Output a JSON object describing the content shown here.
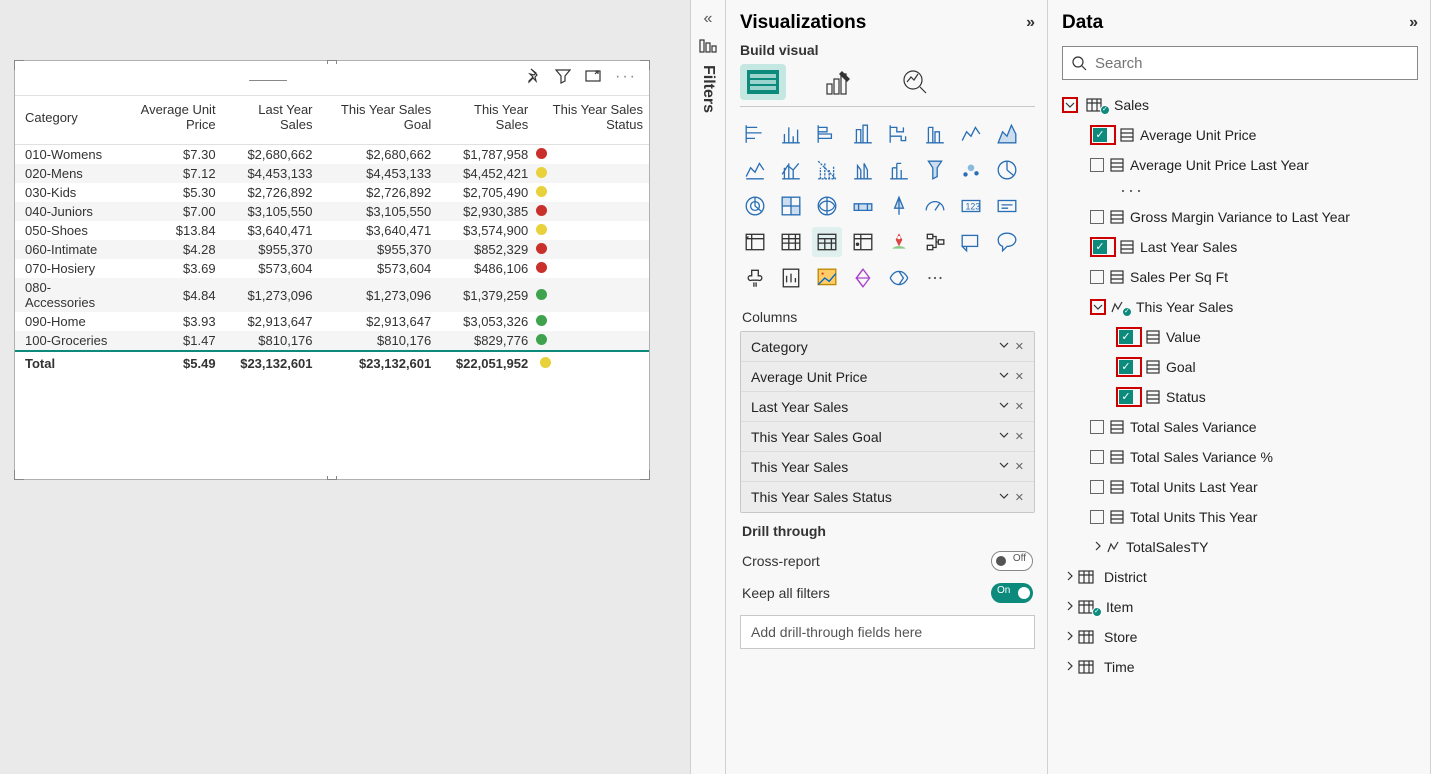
{
  "colors": {
    "red": "#c9302c",
    "yellow": "#e8d13a",
    "green": "#3fa34d",
    "teal": "#0c8b7d",
    "highlight_red": "#c00"
  },
  "table": {
    "columns": [
      "Category",
      "Average Unit Price",
      "Last Year Sales",
      "This Year Sales Goal",
      "This Year Sales",
      "This Year Sales Status"
    ],
    "rows": [
      {
        "c0": "010-Womens",
        "c1": "$7.30",
        "c2": "$2,680,662",
        "c3": "$2,680,662",
        "c4": "$1,787,958",
        "status": "red"
      },
      {
        "c0": "020-Mens",
        "c1": "$7.12",
        "c2": "$4,453,133",
        "c3": "$4,453,133",
        "c4": "$4,452,421",
        "status": "yellow"
      },
      {
        "c0": "030-Kids",
        "c1": "$5.30",
        "c2": "$2,726,892",
        "c3": "$2,726,892",
        "c4": "$2,705,490",
        "status": "yellow"
      },
      {
        "c0": "040-Juniors",
        "c1": "$7.00",
        "c2": "$3,105,550",
        "c3": "$3,105,550",
        "c4": "$2,930,385",
        "status": "red"
      },
      {
        "c0": "050-Shoes",
        "c1": "$13.84",
        "c2": "$3,640,471",
        "c3": "$3,640,471",
        "c4": "$3,574,900",
        "status": "yellow"
      },
      {
        "c0": "060-Intimate",
        "c1": "$4.28",
        "c2": "$955,370",
        "c3": "$955,370",
        "c4": "$852,329",
        "status": "red"
      },
      {
        "c0": "070-Hosiery",
        "c1": "$3.69",
        "c2": "$573,604",
        "c3": "$573,604",
        "c4": "$486,106",
        "status": "red"
      },
      {
        "c0": "080-Accessories",
        "c1": "$4.84",
        "c2": "$1,273,096",
        "c3": "$1,273,096",
        "c4": "$1,379,259",
        "status": "green"
      },
      {
        "c0": "090-Home",
        "c1": "$3.93",
        "c2": "$2,913,647",
        "c3": "$2,913,647",
        "c4": "$3,053,326",
        "status": "green"
      },
      {
        "c0": "100-Groceries",
        "c1": "$1.47",
        "c2": "$810,176",
        "c3": "$810,176",
        "c4": "$829,776",
        "status": "green"
      }
    ],
    "total": {
      "label": "Total",
      "c1": "$5.49",
      "c2": "$23,132,601",
      "c3": "$23,132,601",
      "c4": "$22,051,952",
      "status": "yellow"
    }
  },
  "filters": {
    "label": "Filters"
  },
  "viz": {
    "title": "Visualizations",
    "subhead": "Build visual",
    "wells": {
      "columns_label": "Columns",
      "fields": [
        "Category",
        "Average Unit Price",
        "Last Year Sales",
        "This Year Sales Goal",
        "This Year Sales",
        "This Year Sales Status"
      ]
    },
    "drill": {
      "title": "Drill through",
      "cross": "Cross-report",
      "cross_state": "Off",
      "keep": "Keep all filters",
      "keep_state": "On",
      "placeholder": "Add drill-through fields here"
    }
  },
  "data": {
    "title": "Data",
    "search_placeholder": "Search",
    "tables": {
      "sales": {
        "label": "Sales",
        "fields1": [
          {
            "label": "Average Unit Price",
            "checked": true,
            "highlight": true
          },
          {
            "label": "Average Unit Price Last Year",
            "checked": false
          }
        ],
        "fields2": [
          {
            "label": "Gross Margin Variance to Last Year",
            "checked": false
          },
          {
            "label": "Last Year Sales",
            "checked": true,
            "highlight": true
          },
          {
            "label": "Sales Per Sq Ft",
            "checked": false
          }
        ],
        "this_year": {
          "label": "This Year Sales",
          "children": [
            {
              "label": "Value",
              "checked": true,
              "highlight": true
            },
            {
              "label": "Goal",
              "checked": true,
              "highlight": true
            },
            {
              "label": "Status",
              "checked": true,
              "highlight": true
            }
          ]
        },
        "fields3": [
          {
            "label": "Total Sales Variance",
            "checked": false
          },
          {
            "label": "Total Sales Variance %",
            "checked": false
          },
          {
            "label": "Total Units Last Year",
            "checked": false
          },
          {
            "label": "Total Units This Year",
            "checked": false
          }
        ],
        "totalsales": "TotalSalesTY"
      },
      "others": [
        "District",
        "Item",
        "Store",
        "Time"
      ],
      "item_badge": true
    }
  }
}
